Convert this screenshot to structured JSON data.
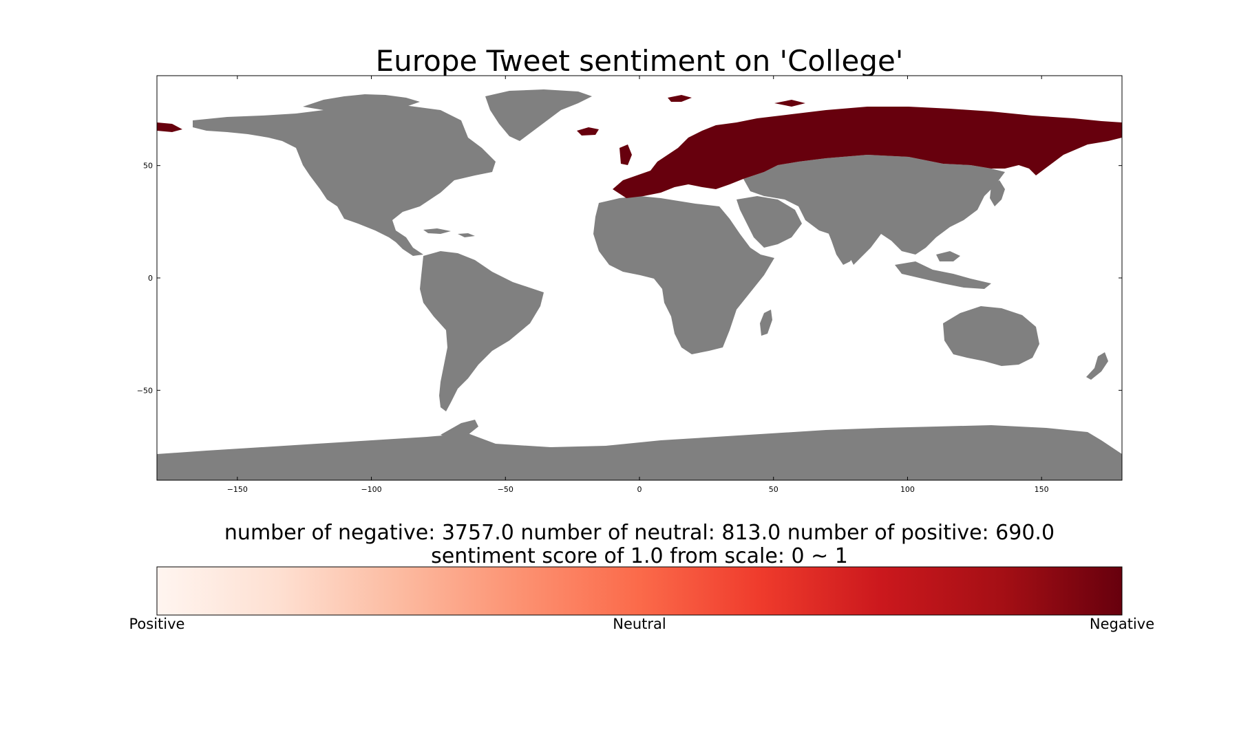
{
  "title": "Europe Tweet sentiment on 'College'",
  "map": {
    "highlighted_region": "Europe",
    "land_color": "#808080",
    "highlight_color": "#67000d",
    "ocean_color": "#ffffff",
    "x_range": [
      -180,
      180
    ],
    "y_range": [
      -90,
      90
    ],
    "x_ticks": [
      {
        "value": -150,
        "label": "−150"
      },
      {
        "value": -100,
        "label": "−100"
      },
      {
        "value": -50,
        "label": "−50"
      },
      {
        "value": 0,
        "label": "0"
      },
      {
        "value": 50,
        "label": "50"
      },
      {
        "value": 100,
        "label": "100"
      },
      {
        "value": 150,
        "label": "150"
      }
    ],
    "y_ticks": [
      {
        "value": 50,
        "label": "50"
      },
      {
        "value": 0,
        "label": "0"
      },
      {
        "value": -50,
        "label": "−50"
      }
    ]
  },
  "stats": {
    "line1": "number of negative: 3757.0 number of neutral: 813.0 number of positive: 690.0",
    "line2": "sentiment score of 1.0 from scale: 0 ~ 1",
    "negative": 3757.0,
    "neutral": 813.0,
    "positive": 690.0,
    "score": 1.0,
    "scale": [
      0,
      1
    ]
  },
  "colorbar": {
    "colors": [
      "#fff5f0",
      "#fee0d2",
      "#fcbba1",
      "#fc9272",
      "#fb6a4a",
      "#ef3b2c",
      "#cb181d",
      "#a50f15",
      "#67000d"
    ],
    "labels": {
      "left": "Positive",
      "center": "Neutral",
      "right": "Negative"
    }
  }
}
